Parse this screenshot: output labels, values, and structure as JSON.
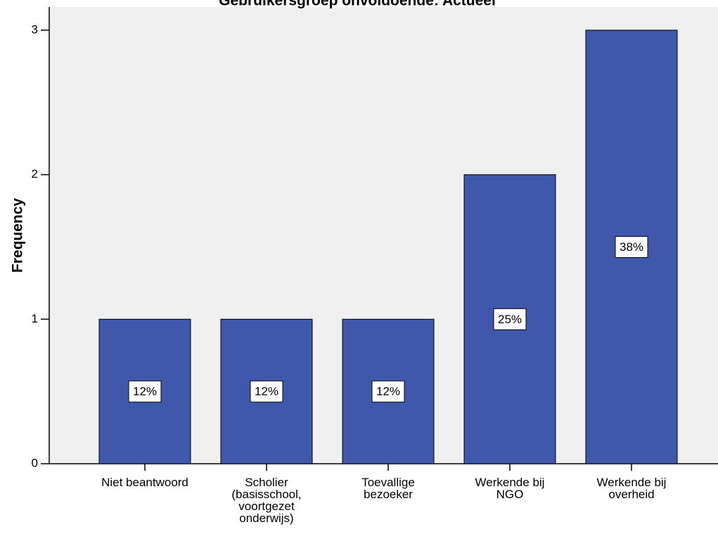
{
  "chart_data": {
    "type": "bar",
    "title": "Gebruikersgroep onvoldoende:  Actueel",
    "y_label": "Frequency",
    "categories": [
      [
        "Niet beantwoord"
      ],
      [
        "Scholier",
        "(basisschool,",
        "voortgezet",
        "onderwijs)"
      ],
      [
        "Toevallige",
        "bezoeker"
      ],
      [
        "Werkende bij",
        "NGO"
      ],
      [
        "Werkende bij",
        "overheid"
      ]
    ],
    "values": [
      1,
      1,
      1,
      2,
      3
    ],
    "percentages": [
      12,
      12,
      12,
      25,
      38
    ],
    "percentage_labels": [
      "12%",
      "12%",
      "12%",
      "25%",
      "38%"
    ],
    "color": "#3f58ac",
    "ylim": [
      0,
      3.16
    ],
    "yticks": [
      0,
      1,
      2,
      3
    ]
  }
}
